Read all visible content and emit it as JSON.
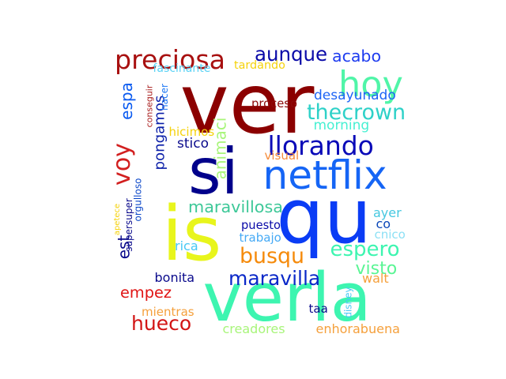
{
  "words": [
    {
      "text": "ver",
      "color": "#8B0000",
      "orientation": "horizontal"
    },
    {
      "text": "si",
      "color": "#00008B",
      "orientation": "horizontal"
    },
    {
      "text": "is",
      "color": "#E8F51C",
      "orientation": "horizontal"
    },
    {
      "text": "qu",
      "color": "#0A3CF5",
      "orientation": "horizontal"
    },
    {
      "text": "verla",
      "color": "#3DF5B0",
      "orientation": "horizontal"
    },
    {
      "text": "netflix",
      "color": "#1565F5",
      "orientation": "horizontal"
    },
    {
      "text": "voy",
      "color": "#D21F1F",
      "orientation": "vertical"
    },
    {
      "text": "hoy",
      "color": "#50F5A8",
      "orientation": "horizontal"
    },
    {
      "text": "preciosa",
      "color": "#A81010",
      "orientation": "horizontal"
    },
    {
      "text": "aunque",
      "color": "#0A0AA8",
      "orientation": "horizontal"
    },
    {
      "text": "acabo",
      "color": "#1E3CF0",
      "orientation": "horizontal"
    },
    {
      "text": "llorando",
      "color": "#0A0AB8",
      "orientation": "horizontal"
    },
    {
      "text": "thecrown",
      "color": "#2ED1C8",
      "orientation": "horizontal"
    },
    {
      "text": "pongamos",
      "color": "#0A1EA8",
      "orientation": "vertical"
    },
    {
      "text": "espa",
      "color": "#0A5AF0",
      "orientation": "vertical"
    },
    {
      "text": "est",
      "color": "#0A0A8C",
      "orientation": "vertical"
    },
    {
      "text": "maravillosa",
      "color": "#3DC898",
      "orientation": "horizontal"
    },
    {
      "text": "busqu",
      "color": "#F58A0A",
      "orientation": "horizontal"
    },
    {
      "text": "espero",
      "color": "#3DF5B0",
      "orientation": "horizontal"
    },
    {
      "text": "empez",
      "color": "#E01414",
      "orientation": "horizontal"
    },
    {
      "text": "hueco",
      "color": "#D21414",
      "orientation": "horizontal"
    },
    {
      "text": "maravilla",
      "color": "#0A28C8",
      "orientation": "horizontal"
    },
    {
      "text": "visto",
      "color": "#5AF594",
      "orientation": "horizontal"
    },
    {
      "text": "animaci",
      "color": "#A8F57A",
      "orientation": "vertical"
    },
    {
      "text": "tardando",
      "color": "#F5D20A",
      "orientation": "horizontal"
    },
    {
      "text": "fascinante",
      "color": "#5AD2F5",
      "orientation": "horizontal"
    },
    {
      "text": "hacer",
      "color": "#1E78F5",
      "orientation": "vertical"
    },
    {
      "text": "conseguir",
      "color": "#A81E1E",
      "orientation": "vertical"
    },
    {
      "text": "desayunado",
      "color": "#1E64F5",
      "orientation": "horizontal"
    },
    {
      "text": "proceso",
      "color": "#8C0A0A",
      "orientation": "horizontal"
    },
    {
      "text": "morning",
      "color": "#46F0D2",
      "orientation": "horizontal"
    },
    {
      "text": "hicimos",
      "color": "#F5D20A",
      "orientation": "horizontal"
    },
    {
      "text": "stico",
      "color": "#0A0A8C",
      "orientation": "horizontal"
    },
    {
      "text": "visual",
      "color": "#F58C3C",
      "orientation": "horizontal"
    },
    {
      "text": "orgulloso",
      "color": "#0A46C8",
      "orientation": "vertical"
    },
    {
      "text": "apetece",
      "color": "#F5D20A",
      "orientation": "vertical"
    },
    {
      "text": "supersuper",
      "color": "#0A0A8C",
      "orientation": "vertical"
    },
    {
      "text": "puesto",
      "color": "#0A0AA8",
      "orientation": "horizontal"
    },
    {
      "text": "trabajo",
      "color": "#46AAF5",
      "orientation": "horizontal"
    },
    {
      "text": "rica",
      "color": "#46C8F5",
      "orientation": "horizontal"
    },
    {
      "text": "ayer",
      "color": "#46C8E0",
      "orientation": "horizontal"
    },
    {
      "text": "co",
      "color": "#0A46B8",
      "orientation": "horizontal"
    },
    {
      "text": "cnico",
      "color": "#8CE0F5",
      "orientation": "horizontal"
    },
    {
      "text": "bonita",
      "color": "#0A0A8C",
      "orientation": "horizontal"
    },
    {
      "text": "walt",
      "color": "#F5A03C",
      "orientation": "horizontal"
    },
    {
      "text": "mientras",
      "color": "#F5A03C",
      "orientation": "horizontal"
    },
    {
      "text": "taa",
      "color": "#0A0A8C",
      "orientation": "horizontal"
    },
    {
      "text": "disney",
      "color": "#46C8F5",
      "orientation": "vertical"
    },
    {
      "text": "creadores",
      "color": "#A8F57A",
      "orientation": "horizontal"
    },
    {
      "text": "enhorabuena",
      "color": "#F5A03C",
      "orientation": "horizontal"
    }
  ]
}
